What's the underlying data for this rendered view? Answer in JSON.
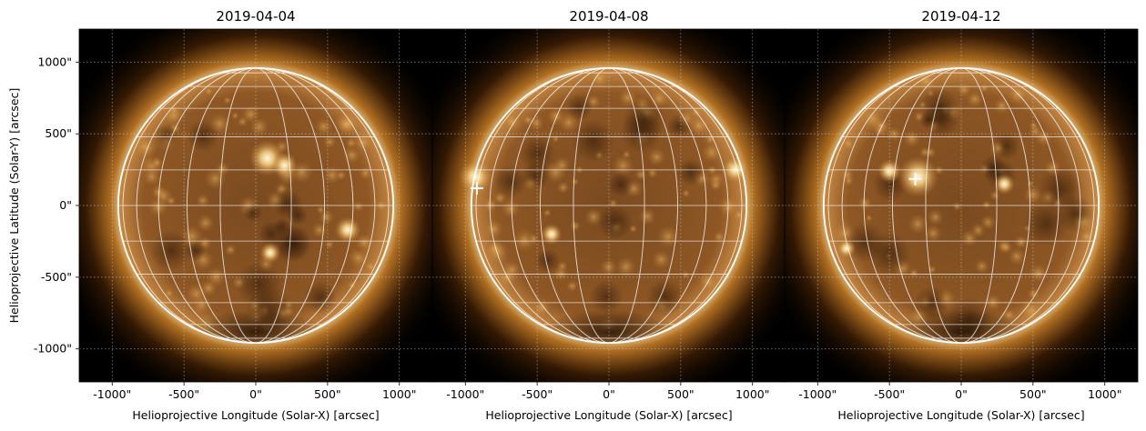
{
  "chart_data": [
    {
      "type": "image",
      "title": "2019-04-04",
      "xlabel": "Helioprojective Longitude (Solar-X) [arcsec]",
      "ylabel": "Helioprojective Latitude (Solar-Y) [arcsec]",
      "xticks": [
        "-1000\"",
        "-500\"",
        "0\"",
        "500\"",
        "1000\""
      ],
      "yticks": [
        "1000\"",
        "500\"",
        "0\"",
        "-500\"",
        "-1000\""
      ],
      "tick_values": [
        -1000,
        -500,
        0,
        500,
        1000
      ],
      "xlim": [
        -1230,
        1230
      ],
      "ylim": [
        -1230,
        1230
      ],
      "solar_radius_arcsec": 958,
      "grid": true,
      "markers": [],
      "active_regions": [
        [
          80,
          330,
          1.0
        ],
        [
          200,
          280,
          0.6
        ],
        [
          640,
          -170,
          0.6
        ],
        [
          100,
          -330,
          0.4
        ]
      ]
    },
    {
      "type": "image",
      "title": "2019-04-08",
      "xlabel": "Helioprojective Longitude (Solar-X) [arcsec]",
      "ylabel": "",
      "xticks": [
        "-1000\"",
        "-500\"",
        "0\"",
        "500\"",
        "1000\""
      ],
      "yticks": [],
      "tick_values": [
        -1000,
        -500,
        0,
        500,
        1000
      ],
      "xlim": [
        -1230,
        1230
      ],
      "ylim": [
        -1230,
        1230
      ],
      "solar_radius_arcsec": 958,
      "grid": true,
      "markers": [
        {
          "x": -920,
          "y": 120,
          "symbol": "+"
        }
      ],
      "active_regions": [
        [
          -930,
          200,
          0.9
        ],
        [
          880,
          250,
          0.6
        ],
        [
          -400,
          -200,
          0.4
        ]
      ]
    },
    {
      "type": "image",
      "title": "2019-04-12",
      "xlabel": "Helioprojective Longitude (Solar-X) [arcsec]",
      "ylabel": "",
      "xticks": [
        "-1000\"",
        "-500\"",
        "0\"",
        "500\"",
        "1000\""
      ],
      "yticks": [],
      "tick_values": [
        -1000,
        -500,
        0,
        500,
        1000
      ],
      "xlim": [
        -1230,
        1230
      ],
      "ylim": [
        -1230,
        1230
      ],
      "solar_radius_arcsec": 958,
      "grid": true,
      "markers": [
        {
          "x": -320,
          "y": 185,
          "symbol": "+"
        }
      ],
      "active_regions": [
        [
          -300,
          200,
          1.2
        ],
        [
          -500,
          240,
          0.5
        ],
        [
          300,
          150,
          0.4
        ],
        [
          -800,
          -300,
          0.3
        ]
      ]
    }
  ],
  "colors": {
    "background": "#000000",
    "corona_inner": "#f2d9a4",
    "corona_mid": "#b06f22",
    "corona_outer": "#3a1c04",
    "disk_center": "#7a4a20",
    "disk_limb": "#c78a45",
    "limb_line": "#ffffff",
    "grid_lines": "#ffffff",
    "axis_grid": "#cfcfcf"
  }
}
